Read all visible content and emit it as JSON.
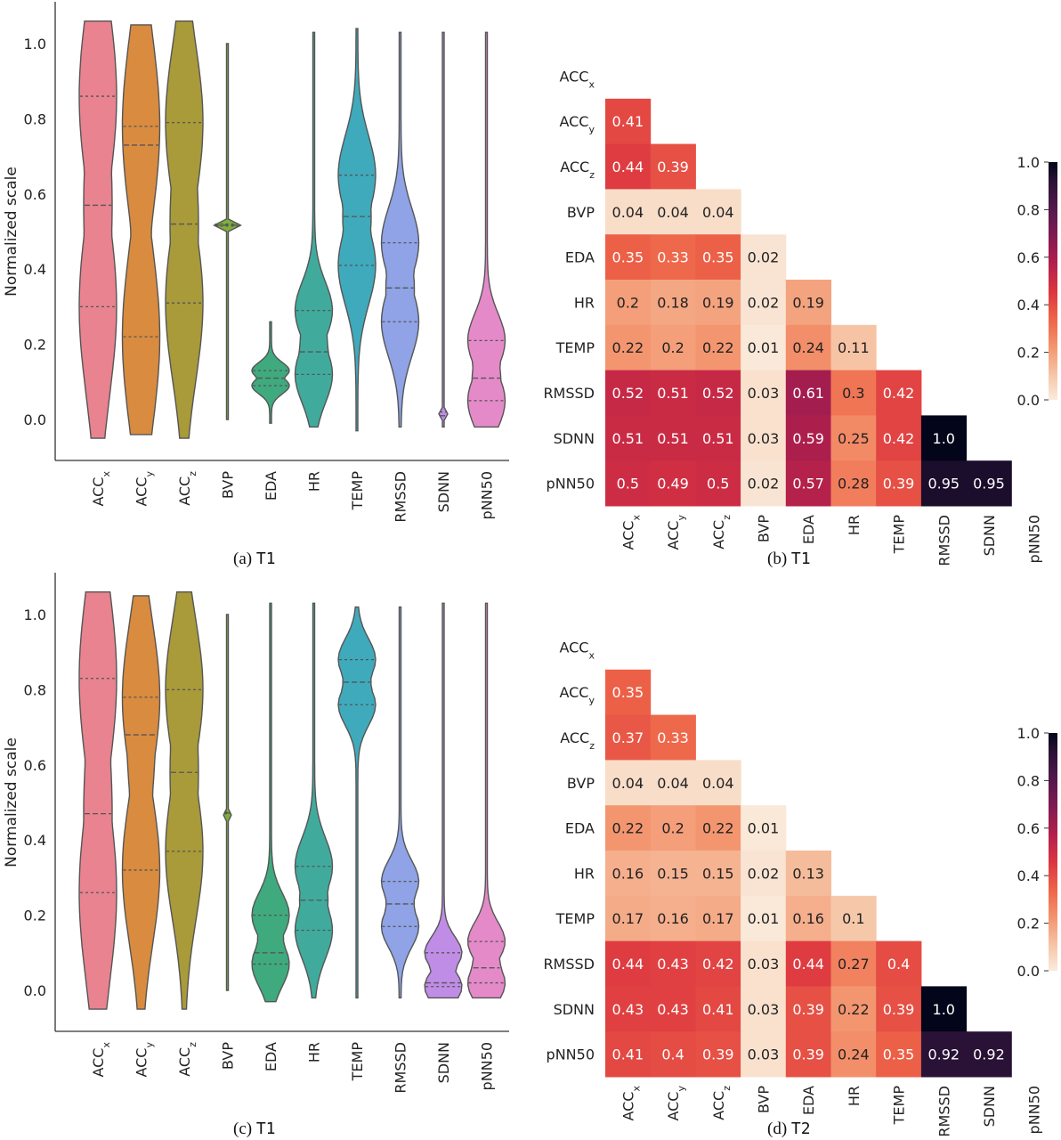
{
  "captions": [
    {
      "letter": "(a)",
      "tag": "T1"
    },
    {
      "letter": "(b)",
      "tag": "T1"
    },
    {
      "letter": "(c)",
      "tag": "T1"
    },
    {
      "letter": "(d)",
      "tag": "T2"
    }
  ],
  "chart_data": [
    {
      "type": "violin",
      "panel": "a",
      "ylabel": "Normalized scale",
      "yticks": [
        "0.0",
        "0.2",
        "0.4",
        "0.6",
        "0.8",
        "1.0"
      ],
      "categories": [
        {
          "base": "ACC",
          "sub": "x"
        },
        {
          "base": "ACC",
          "sub": "y"
        },
        {
          "base": "ACC",
          "sub": "z"
        },
        {
          "base": "BVP",
          "sub": ""
        },
        {
          "base": "EDA",
          "sub": ""
        },
        {
          "base": "HR",
          "sub": ""
        },
        {
          "base": "TEMP",
          "sub": ""
        },
        {
          "base": "RMSSD",
          "sub": ""
        },
        {
          "base": "SDNN",
          "sub": ""
        },
        {
          "base": "pNN50",
          "sub": ""
        }
      ],
      "colors": [
        "#e8838f",
        "#d98b3f",
        "#a99a3a",
        "#7fae3e",
        "#3faa7e",
        "#40ab9d",
        "#3faabb",
        "#8fa3e6",
        "#c08de6",
        "#e58ac8"
      ],
      "quartiles": [
        [
          0.3,
          0.57,
          0.86
        ],
        [
          0.22,
          0.73,
          0.78
        ],
        [
          0.31,
          0.52,
          0.79
        ],
        [
          0.515,
          0.517,
          0.52
        ],
        [
          0.09,
          0.11,
          0.13
        ],
        [
          0.12,
          0.18,
          0.29
        ],
        [
          0.41,
          0.54,
          0.65
        ],
        [
          0.26,
          0.35,
          0.47
        ],
        [
          0.005,
          0.01,
          0.02
        ],
        [
          0.05,
          0.11,
          0.21
        ]
      ],
      "ranges": [
        [
          -0.05,
          1.06
        ],
        [
          -0.04,
          1.05
        ],
        [
          -0.05,
          1.06
        ],
        [
          0.0,
          1.0
        ],
        [
          -0.01,
          0.26
        ],
        [
          -0.02,
          1.03
        ],
        [
          -0.03,
          1.04
        ],
        [
          -0.02,
          1.03
        ],
        [
          -0.02,
          1.03
        ],
        [
          -0.02,
          1.03
        ]
      ]
    },
    {
      "type": "heatmap",
      "panel": "b",
      "labels": [
        {
          "base": "ACC",
          "sub": "x"
        },
        {
          "base": "ACC",
          "sub": "y"
        },
        {
          "base": "ACC",
          "sub": "z"
        },
        {
          "base": "BVP",
          "sub": ""
        },
        {
          "base": "EDA",
          "sub": ""
        },
        {
          "base": "HR",
          "sub": ""
        },
        {
          "base": "TEMP",
          "sub": ""
        },
        {
          "base": "RMSSD",
          "sub": ""
        },
        {
          "base": "SDNN",
          "sub": ""
        },
        {
          "base": "pNN50",
          "sub": ""
        }
      ],
      "values": [
        [],
        [
          "0.41"
        ],
        [
          "0.44",
          "0.39"
        ],
        [
          "0.04",
          "0.04",
          "0.04"
        ],
        [
          "0.35",
          "0.33",
          "0.35",
          "0.02"
        ],
        [
          "0.2",
          "0.18",
          "0.19",
          "0.02",
          "0.19"
        ],
        [
          "0.22",
          "0.2",
          "0.22",
          "0.01",
          "0.24",
          "0.11"
        ],
        [
          "0.52",
          "0.51",
          "0.52",
          "0.03",
          "0.61",
          "0.3",
          "0.42"
        ],
        [
          "0.51",
          "0.51",
          "0.51",
          "0.03",
          "0.59",
          "0.25",
          "0.42",
          "1.0"
        ],
        [
          "0.5",
          "0.49",
          "0.5",
          "0.02",
          "0.57",
          "0.28",
          "0.39",
          "0.95",
          "0.95"
        ]
      ],
      "colorbar_ticks": [
        "0.0",
        "0.2",
        "0.4",
        "0.6",
        "0.8",
        "1.0"
      ],
      "vmin": 0,
      "vmax": 1
    },
    {
      "type": "violin",
      "panel": "c",
      "ylabel": "Normalized scale",
      "yticks": [
        "0.0",
        "0.2",
        "0.4",
        "0.6",
        "0.8",
        "1.0"
      ],
      "categories": [
        {
          "base": "ACC",
          "sub": "x"
        },
        {
          "base": "ACC",
          "sub": "y"
        },
        {
          "base": "ACC",
          "sub": "z"
        },
        {
          "base": "BVP",
          "sub": ""
        },
        {
          "base": "EDA",
          "sub": ""
        },
        {
          "base": "HR",
          "sub": ""
        },
        {
          "base": "TEMP",
          "sub": ""
        },
        {
          "base": "RMSSD",
          "sub": ""
        },
        {
          "base": "SDNN",
          "sub": ""
        },
        {
          "base": "pNN50",
          "sub": ""
        }
      ],
      "colors": [
        "#e8838f",
        "#d98b3f",
        "#a99a3a",
        "#7fae3e",
        "#3faa7e",
        "#40ab9d",
        "#3faabb",
        "#8fa3e6",
        "#c08de6",
        "#e58ac8"
      ],
      "quartiles": [
        [
          0.26,
          0.47,
          0.83
        ],
        [
          0.32,
          0.68,
          0.78
        ],
        [
          0.37,
          0.58,
          0.8
        ],
        [
          0.47,
          0.472,
          0.475
        ],
        [
          0.07,
          0.1,
          0.2
        ],
        [
          0.16,
          0.24,
          0.33
        ],
        [
          0.76,
          0.82,
          0.88
        ],
        [
          0.17,
          0.23,
          0.29
        ],
        [
          0.01,
          0.02,
          0.1
        ],
        [
          0.02,
          0.06,
          0.13
        ]
      ],
      "ranges": [
        [
          -0.05,
          1.06
        ],
        [
          -0.05,
          1.05
        ],
        [
          -0.05,
          1.06
        ],
        [
          0.0,
          1.0
        ],
        [
          -0.03,
          1.03
        ],
        [
          -0.02,
          1.03
        ],
        [
          -0.02,
          1.02
        ],
        [
          -0.02,
          1.02
        ],
        [
          -0.02,
          1.03
        ],
        [
          -0.02,
          1.03
        ]
      ]
    },
    {
      "type": "heatmap",
      "panel": "d",
      "labels": [
        {
          "base": "ACC",
          "sub": "x"
        },
        {
          "base": "ACC",
          "sub": "y"
        },
        {
          "base": "ACC",
          "sub": "z"
        },
        {
          "base": "BVP",
          "sub": ""
        },
        {
          "base": "EDA",
          "sub": ""
        },
        {
          "base": "HR",
          "sub": ""
        },
        {
          "base": "TEMP",
          "sub": ""
        },
        {
          "base": "RMSSD",
          "sub": ""
        },
        {
          "base": "SDNN",
          "sub": ""
        },
        {
          "base": "pNN50",
          "sub": ""
        }
      ],
      "values": [
        [],
        [
          "0.35"
        ],
        [
          "0.37",
          "0.33"
        ],
        [
          "0.04",
          "0.04",
          "0.04"
        ],
        [
          "0.22",
          "0.2",
          "0.22",
          "0.01"
        ],
        [
          "0.16",
          "0.15",
          "0.15",
          "0.02",
          "0.13"
        ],
        [
          "0.17",
          "0.16",
          "0.17",
          "0.01",
          "0.16",
          "0.1"
        ],
        [
          "0.44",
          "0.43",
          "0.42",
          "0.03",
          "0.44",
          "0.27",
          "0.4"
        ],
        [
          "0.43",
          "0.43",
          "0.41",
          "0.03",
          "0.39",
          "0.22",
          "0.39",
          "1.0"
        ],
        [
          "0.41",
          "0.4",
          "0.39",
          "0.03",
          "0.39",
          "0.24",
          "0.35",
          "0.92",
          "0.92"
        ]
      ],
      "colorbar_ticks": [
        "0.0",
        "0.2",
        "0.4",
        "0.6",
        "0.8",
        "1.0"
      ],
      "vmin": 0,
      "vmax": 1
    }
  ]
}
